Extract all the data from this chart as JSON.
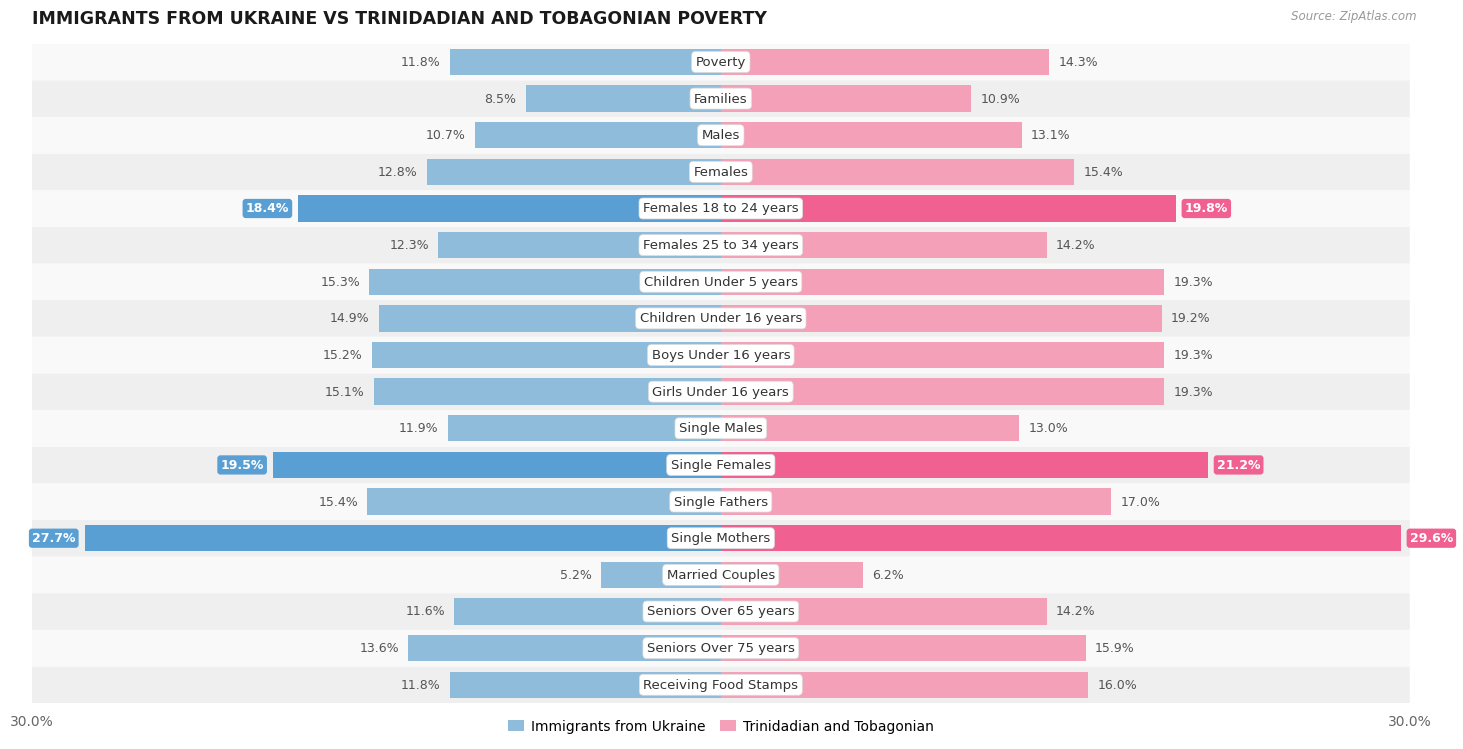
{
  "title": "IMMIGRANTS FROM UKRAINE VS TRINIDADIAN AND TOBAGONIAN POVERTY",
  "source": "Source: ZipAtlas.com",
  "categories": [
    "Poverty",
    "Families",
    "Males",
    "Females",
    "Females 18 to 24 years",
    "Females 25 to 34 years",
    "Children Under 5 years",
    "Children Under 16 years",
    "Boys Under 16 years",
    "Girls Under 16 years",
    "Single Males",
    "Single Females",
    "Single Fathers",
    "Single Mothers",
    "Married Couples",
    "Seniors Over 65 years",
    "Seniors Over 75 years",
    "Receiving Food Stamps"
  ],
  "ukraine_values": [
    11.8,
    8.5,
    10.7,
    12.8,
    18.4,
    12.3,
    15.3,
    14.9,
    15.2,
    15.1,
    11.9,
    19.5,
    15.4,
    27.7,
    5.2,
    11.6,
    13.6,
    11.8
  ],
  "trinidad_values": [
    14.3,
    10.9,
    13.1,
    15.4,
    19.8,
    14.2,
    19.3,
    19.2,
    19.3,
    19.3,
    13.0,
    21.2,
    17.0,
    29.6,
    6.2,
    14.2,
    15.9,
    16.0
  ],
  "ukraine_color": "#8fbcdb",
  "trinidad_color": "#f4a0b8",
  "ukraine_highlight_color": "#5a9fd4",
  "trinidad_highlight_color": "#f06090",
  "highlight_rows": [
    4,
    11,
    13
  ],
  "axis_max": 30.0,
  "background_color": "#ffffff",
  "row_alt_color": "#efefef",
  "row_base_color": "#f9f9f9",
  "label_fontsize": 9.5,
  "value_fontsize": 9.0,
  "title_fontsize": 12.5
}
